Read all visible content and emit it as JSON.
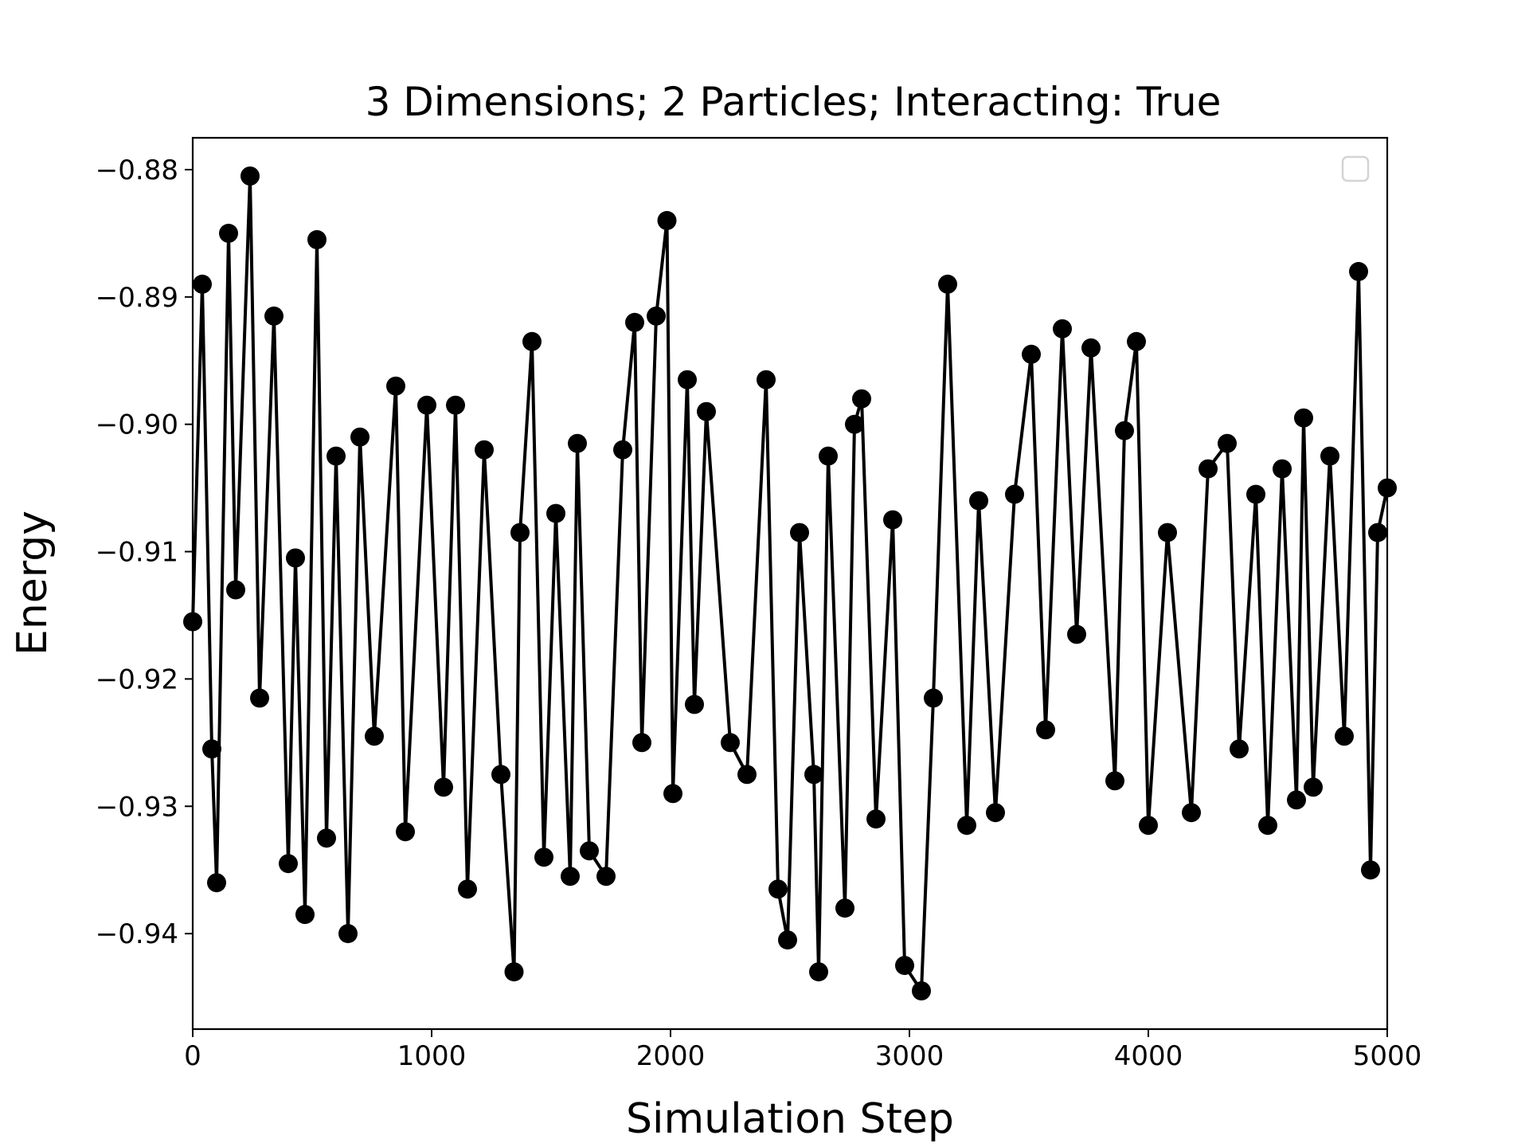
{
  "chart_data": {
    "type": "line",
    "title": "3 Dimensions; 2 Particles; Interacting: True",
    "xlabel": "Simulation Step",
    "ylabel": "Energy",
    "xlim": [
      0,
      5000
    ],
    "ylim": [
      -0.9475,
      -0.8775
    ],
    "xticks": [
      {
        "value": 0,
        "label": "0"
      },
      {
        "value": 1000,
        "label": "1000"
      },
      {
        "value": 2000,
        "label": "2000"
      },
      {
        "value": 3000,
        "label": "3000"
      },
      {
        "value": 4000,
        "label": "4000"
      },
      {
        "value": 5000,
        "label": "5000"
      }
    ],
    "yticks": [
      {
        "value": -0.88,
        "label": "−0.88"
      },
      {
        "value": -0.89,
        "label": "−0.89"
      },
      {
        "value": -0.9,
        "label": "−0.90"
      },
      {
        "value": -0.91,
        "label": "−0.91"
      },
      {
        "value": -0.92,
        "label": "−0.92"
      },
      {
        "value": -0.93,
        "label": "−0.93"
      },
      {
        "value": -0.94,
        "label": "−0.94"
      }
    ],
    "grid": false,
    "legend": {
      "placement": "top-right",
      "entries": []
    },
    "series": [
      {
        "color": "#000000",
        "marker": "circle",
        "x": [
          0,
          40,
          80,
          100,
          150,
          180,
          240,
          280,
          340,
          400,
          430,
          470,
          520,
          560,
          600,
          650,
          700,
          760,
          850,
          890,
          980,
          1050,
          1100,
          1150,
          1220,
          1290,
          1345,
          1370,
          1420,
          1470,
          1520,
          1580,
          1610,
          1660,
          1730,
          1800,
          1850,
          1880,
          1940,
          1985,
          2010,
          2070,
          2100,
          2150,
          2250,
          2320,
          2400,
          2450,
          2490,
          2540,
          2600,
          2620,
          2660,
          2730,
          2770,
          2800,
          2860,
          2930,
          2980,
          3050,
          3100,
          3160,
          3240,
          3290,
          3360,
          3440,
          3510,
          3570,
          3640,
          3700,
          3760,
          3860,
          3900,
          3950,
          4000,
          4080,
          4180,
          4250,
          4330,
          4380,
          4450,
          4500,
          4560,
          4620,
          4650,
          4690,
          4760,
          4820,
          4880,
          4930,
          4960,
          5000
        ],
        "y": [
          -0.9155,
          -0.889,
          -0.9255,
          -0.936,
          -0.885,
          -0.913,
          -0.8805,
          -0.9215,
          -0.8915,
          -0.9345,
          -0.9105,
          -0.9385,
          -0.8855,
          -0.9325,
          -0.9025,
          -0.94,
          -0.901,
          -0.9245,
          -0.897,
          -0.932,
          -0.8985,
          -0.9285,
          -0.8985,
          -0.9365,
          -0.902,
          -0.9275,
          -0.943,
          -0.9085,
          -0.8935,
          -0.934,
          -0.907,
          -0.9355,
          -0.9015,
          -0.9335,
          -0.9355,
          -0.902,
          -0.892,
          -0.925,
          -0.8915,
          -0.884,
          -0.929,
          -0.8965,
          -0.922,
          -0.899,
          -0.925,
          -0.9275,
          -0.8965,
          -0.9365,
          -0.9405,
          -0.9085,
          -0.9275,
          -0.943,
          -0.9025,
          -0.938,
          -0.9,
          -0.898,
          -0.931,
          -0.9075,
          -0.9425,
          -0.9445,
          -0.9215,
          -0.889,
          -0.9315,
          -0.906,
          -0.9305,
          -0.9055,
          -0.8945,
          -0.924,
          -0.8925,
          -0.9165,
          -0.894,
          -0.928,
          -0.9005,
          -0.8935,
          -0.9315,
          -0.9085,
          -0.9305,
          -0.9035,
          -0.9015,
          -0.9255,
          -0.9055,
          -0.9315,
          -0.9035,
          -0.9295,
          -0.8995,
          -0.9285,
          -0.9025,
          -0.9245,
          -0.888,
          -0.935,
          -0.9085,
          -0.905
        ]
      }
    ]
  }
}
